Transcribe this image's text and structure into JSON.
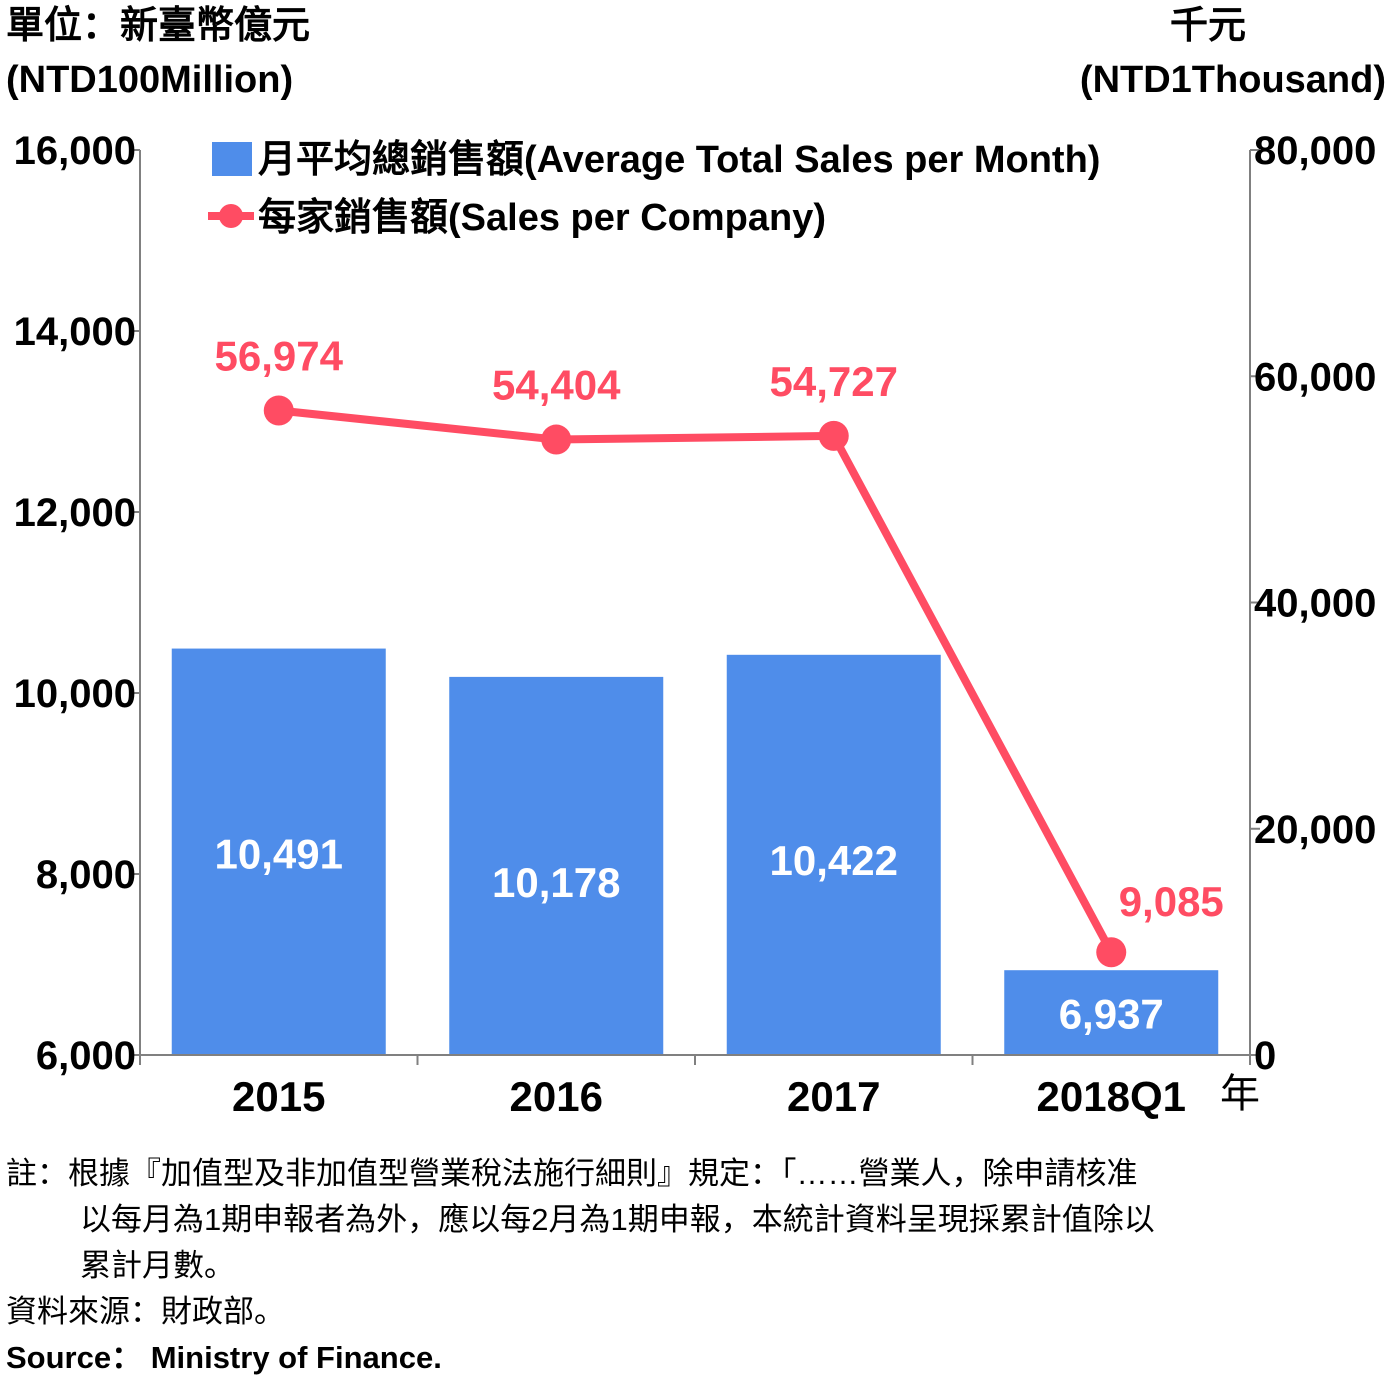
{
  "units": {
    "left_line1": "單位：新臺幣億元",
    "left_line2": "(NTD100Million)",
    "right_line1": "千元",
    "right_line2": "(NTD1Thousand)"
  },
  "year_label": "年",
  "footnotes": {
    "note_line1": "註：根據『加值型及非加值型營業稅法施行細則』規定：「……營業人，除申請核准",
    "note_line2": "以每月為1期申報者為外，應以每2月為1期申報，本統計資料呈現採累計值除以",
    "note_line3": "累計月數。",
    "source_zh": "資料來源：財政部。",
    "source_en": "Source： Ministry of Finance."
  },
  "chart_data": {
    "type": "bar",
    "categories": [
      "2015",
      "2016",
      "2017",
      "2018Q1"
    ],
    "series": [
      {
        "name": "月平均總銷售額(Average Total Sales per Month)",
        "type": "bar",
        "axis": "left",
        "values": [
          10491,
          10178,
          10422,
          6937
        ],
        "labels": [
          "10,491",
          "10,178",
          "10,422",
          "6,937"
        ],
        "color": "#4F8DEA"
      },
      {
        "name": "每家銷售額(Sales per Company)",
        "type": "line",
        "axis": "right",
        "values": [
          56974,
          54404,
          54727,
          9085
        ],
        "labels": [
          "56,974",
          "54,404",
          "54,727",
          "9,085"
        ],
        "color": "#FF4C63"
      }
    ],
    "y_left": {
      "min": 6000,
      "max": 16000,
      "ticks": [
        "6,000",
        "8,000",
        "10,000",
        "12,000",
        "14,000",
        "16,000"
      ]
    },
    "y_right": {
      "min": 0,
      "max": 80000,
      "ticks": [
        "0",
        "20,000",
        "40,000",
        "60,000",
        "80,000"
      ]
    },
    "grid": false,
    "legend": "top"
  }
}
